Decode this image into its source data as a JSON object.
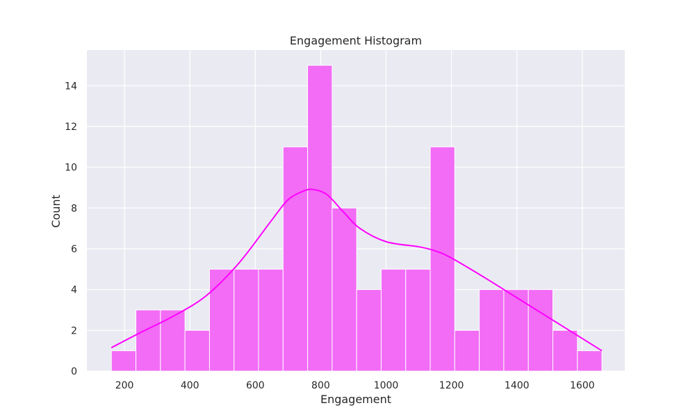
{
  "chart_data": {
    "type": "bar",
    "title": "Engagement Histogram",
    "xlabel": "Engagement",
    "ylabel": "Count",
    "xlim": [
      85,
      1730
    ],
    "ylim": [
      0,
      15.75
    ],
    "xticks": [
      200,
      400,
      600,
      800,
      1000,
      1200,
      1400,
      1600
    ],
    "yticks": [
      0,
      2,
      4,
      6,
      8,
      10,
      12,
      14
    ],
    "bin_edges": [
      160,
      235,
      310,
      385,
      460,
      535,
      610,
      685,
      760,
      835,
      910,
      985,
      1060,
      1135,
      1210,
      1285,
      1360,
      1435,
      1510,
      1585,
      1660
    ],
    "values": [
      1,
      3,
      3,
      2,
      5,
      5,
      5,
      11,
      15,
      8,
      4,
      5,
      5,
      11,
      2,
      4,
      4,
      4,
      2,
      1
    ],
    "kde": {
      "x": [
        160,
        250,
        350,
        450,
        550,
        650,
        700,
        750,
        780,
        820,
        870,
        920,
        1000,
        1100,
        1150,
        1200,
        1300,
        1400,
        1500,
        1600,
        1660
      ],
      "y": [
        1.15,
        1.9,
        2.7,
        3.7,
        5.3,
        7.4,
        8.4,
        8.85,
        8.9,
        8.65,
        7.8,
        7.0,
        6.35,
        6.1,
        5.9,
        5.55,
        4.6,
        3.6,
        2.6,
        1.6,
        1.0
      ]
    },
    "bar_color": "#f26cf5",
    "line_color": "#ff00ff",
    "background_color": "#eaeaf2",
    "grid": true
  }
}
